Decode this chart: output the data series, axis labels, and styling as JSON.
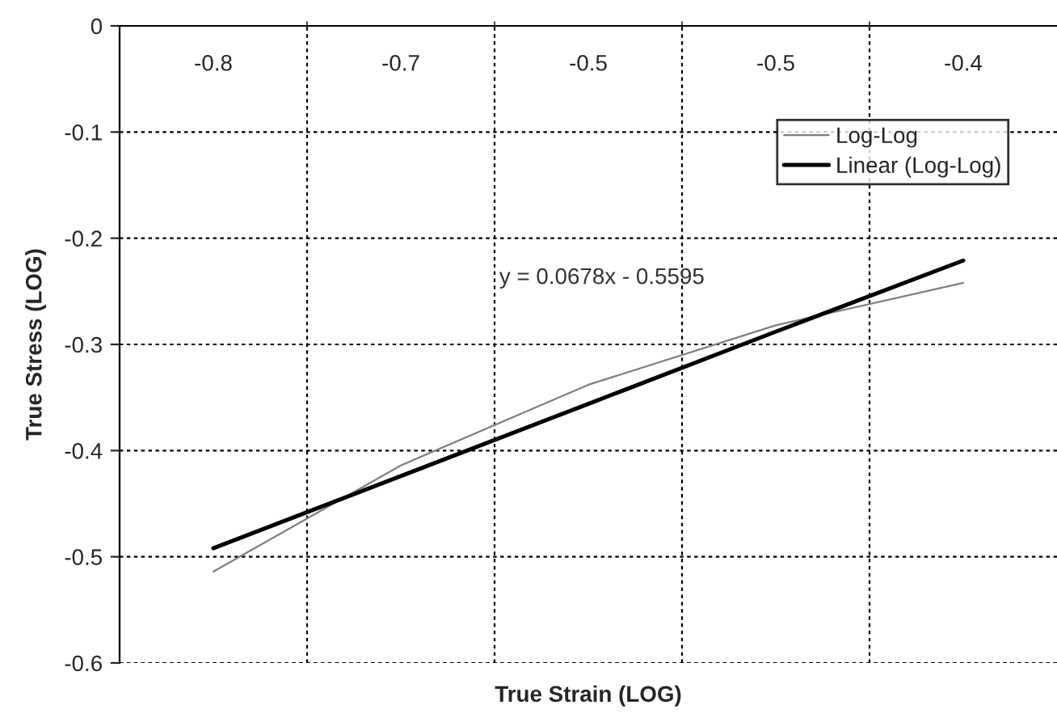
{
  "chart_data": {
    "type": "line",
    "xlabel": "True Strain (LOG)",
    "ylabel": "True Stress (LOG)",
    "categories": [
      "-0.8",
      "-0.7",
      "-0.5",
      "-0.5",
      "-0.4"
    ],
    "series": [
      {
        "name": "Log-Log",
        "color": "#808080",
        "values": [
          -0.514,
          -0.414,
          -0.338,
          -0.282,
          -0.242
        ]
      },
      {
        "name": "Linear (Log-Log)",
        "color": "#000000",
        "values": [
          -0.492,
          -0.424,
          -0.356,
          -0.288,
          -0.221
        ]
      }
    ],
    "ylim": [
      -0.6,
      0
    ],
    "yticks": [
      0,
      -0.1,
      -0.2,
      -0.3,
      -0.4,
      -0.5,
      -0.6
    ],
    "grid": true,
    "legend": "top right",
    "annotations": [
      "y = 0.0678x - 0.5595"
    ]
  }
}
